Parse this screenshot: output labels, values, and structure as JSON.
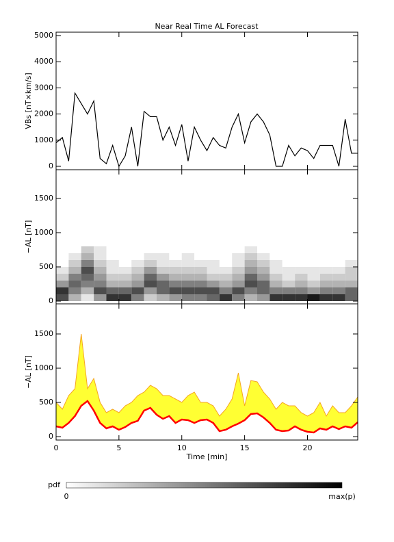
{
  "chart_data": [
    {
      "type": "line",
      "title": "Near Real Time AL Forecast",
      "ylabel": "VBs [nT×km/s]",
      "color": "#000000",
      "x": [
        0,
        0.5,
        1,
        1.5,
        2,
        2.5,
        3,
        3.5,
        4,
        4.5,
        5,
        5.5,
        6,
        6.5,
        7,
        7.5,
        8,
        8.5,
        9,
        9.5,
        10,
        10.5,
        11,
        11.5,
        12,
        12.5,
        13,
        13.5,
        14,
        14.5,
        15,
        15.5,
        16,
        16.5,
        17,
        17.5,
        18,
        18.5,
        19,
        19.5,
        20,
        20.5,
        21,
        21.5,
        22,
        22.5,
        23,
        23.5,
        24
      ],
      "values": [
        900,
        1100,
        200,
        2800,
        2400,
        2000,
        2500,
        300,
        100,
        800,
        0,
        400,
        1500,
        0,
        2100,
        1900,
        1900,
        1000,
        1500,
        800,
        1600,
        200,
        1500,
        1000,
        600,
        1100,
        800,
        700,
        1500,
        2000,
        900,
        1700,
        2000,
        1700,
        1200,
        0,
        0,
        800,
        400,
        700,
        600,
        300,
        800,
        800,
        800,
        0,
        1800,
        500,
        500
      ],
      "xlim": [
        0,
        24
      ],
      "xticks": [
        0,
        5,
        10,
        15,
        20
      ],
      "ylim": [
        -130,
        5130
      ],
      "yticks": [
        0,
        1000,
        2000,
        3000,
        4000,
        5000
      ]
    },
    {
      "type": "heatmap",
      "ylabel": "−AL [nT]",
      "x_edges": [
        0,
        1,
        2,
        3,
        4,
        5,
        6,
        7,
        8,
        9,
        10,
        11,
        12,
        13,
        14,
        15,
        16,
        17,
        18,
        19,
        20,
        21,
        22,
        23,
        24
      ],
      "y_edges": [
        0,
        100,
        200,
        300,
        400,
        500,
        600,
        700,
        800
      ],
      "z": [
        [
          0.7,
          0.8,
          0.4,
          0.2,
          0.1,
          0,
          0,
          0
        ],
        [
          0.3,
          0.5,
          0.6,
          0.5,
          0.3,
          0.2,
          0.1,
          0
        ],
        [
          0.1,
          0.3,
          0.5,
          0.6,
          0.7,
          0.5,
          0.3,
          0.2
        ],
        [
          0.4,
          0.7,
          0.5,
          0.4,
          0.3,
          0.2,
          0.1,
          0.1
        ],
        [
          0.8,
          0.6,
          0.3,
          0.2,
          0.1,
          0.1,
          0,
          0
        ],
        [
          0.8,
          0.6,
          0.3,
          0.2,
          0.1,
          0,
          0,
          0
        ],
        [
          0.5,
          0.7,
          0.4,
          0.3,
          0.2,
          0.1,
          0,
          0
        ],
        [
          0.2,
          0.4,
          0.7,
          0.6,
          0.4,
          0.2,
          0.1,
          0
        ],
        [
          0.3,
          0.6,
          0.6,
          0.4,
          0.2,
          0.1,
          0.1,
          0
        ],
        [
          0.4,
          0.7,
          0.5,
          0.3,
          0.2,
          0.1,
          0,
          0
        ],
        [
          0.5,
          0.7,
          0.5,
          0.3,
          0.2,
          0.1,
          0.1,
          0
        ],
        [
          0.5,
          0.7,
          0.5,
          0.3,
          0.2,
          0.1,
          0,
          0
        ],
        [
          0.6,
          0.7,
          0.4,
          0.2,
          0.1,
          0.1,
          0,
          0
        ],
        [
          0.8,
          0.5,
          0.3,
          0.2,
          0.1,
          0,
          0,
          0
        ],
        [
          0.5,
          0.7,
          0.4,
          0.3,
          0.2,
          0.1,
          0.1,
          0
        ],
        [
          0.3,
          0.5,
          0.7,
          0.6,
          0.4,
          0.3,
          0.2,
          0.1
        ],
        [
          0.4,
          0.6,
          0.6,
          0.4,
          0.3,
          0.2,
          0.1,
          0
        ],
        [
          0.8,
          0.5,
          0.3,
          0.2,
          0.1,
          0.1,
          0,
          0
        ],
        [
          0.8,
          0.5,
          0.2,
          0.1,
          0.1,
          0,
          0,
          0
        ],
        [
          0.8,
          0.5,
          0.3,
          0.2,
          0.1,
          0,
          0,
          0
        ],
        [
          0.9,
          0.4,
          0.2,
          0.1,
          0.1,
          0,
          0,
          0
        ],
        [
          0.8,
          0.5,
          0.3,
          0.2,
          0.1,
          0,
          0,
          0
        ],
        [
          0.8,
          0.5,
          0.3,
          0.2,
          0.1,
          0,
          0,
          0
        ],
        [
          0.6,
          0.6,
          0.3,
          0.2,
          0.2,
          0.1,
          0,
          0
        ]
      ],
      "xlim": [
        0,
        24
      ],
      "xticks": [
        0,
        5,
        10,
        15,
        20
      ],
      "ylim": [
        -40,
        1920
      ],
      "yticks": [
        0,
        500,
        1000,
        1500
      ]
    },
    {
      "type": "band",
      "ylabel": "−AL [nT]",
      "xlabel": "Time [min]",
      "band_color": "#ffff33",
      "x": [
        0,
        0.5,
        1,
        1.5,
        2,
        2.5,
        3,
        3.5,
        4,
        4.5,
        5,
        5.5,
        6,
        6.5,
        7,
        7.5,
        8,
        8.5,
        9,
        9.5,
        10,
        10.5,
        11,
        11.5,
        12,
        12.5,
        13,
        13.5,
        14,
        14.5,
        15,
        15.5,
        16,
        16.5,
        17,
        17.5,
        18,
        18.5,
        19,
        19.5,
        20,
        20.5,
        21,
        21.5,
        22,
        22.5,
        23,
        23.5,
        24
      ],
      "series": [
        {
          "color": "#ff0000",
          "values": [
            150,
            130,
            200,
            300,
            450,
            520,
            380,
            200,
            120,
            150,
            100,
            140,
            200,
            230,
            380,
            420,
            320,
            260,
            300,
            200,
            250,
            240,
            200,
            240,
            250,
            200,
            80,
            100,
            150,
            190,
            240,
            330,
            340,
            280,
            200,
            100,
            80,
            90,
            150,
            100,
            70,
            60,
            120,
            100,
            150,
            110,
            150,
            130,
            210
          ]
        },
        {
          "color": "#f5a623",
          "values": [
            500,
            400,
            600,
            700,
            1500,
            700,
            850,
            500,
            350,
            400,
            350,
            450,
            500,
            600,
            650,
            750,
            700,
            600,
            600,
            550,
            500,
            600,
            650,
            500,
            500,
            450,
            300,
            400,
            550,
            930,
            450,
            820,
            800,
            650,
            550,
            400,
            500,
            450,
            450,
            350,
            300,
            350,
            500,
            300,
            450,
            350,
            350,
            450,
            580
          ]
        }
      ],
      "xlim": [
        0,
        24
      ],
      "xticks": [
        0,
        5,
        10,
        15,
        20
      ],
      "ylim": [
        -50,
        1940
      ],
      "yticks": [
        0,
        500,
        1000,
        1500
      ]
    }
  ],
  "colorbar": {
    "label": "pdf",
    "min_label": "0",
    "max_label": "max(p)"
  }
}
